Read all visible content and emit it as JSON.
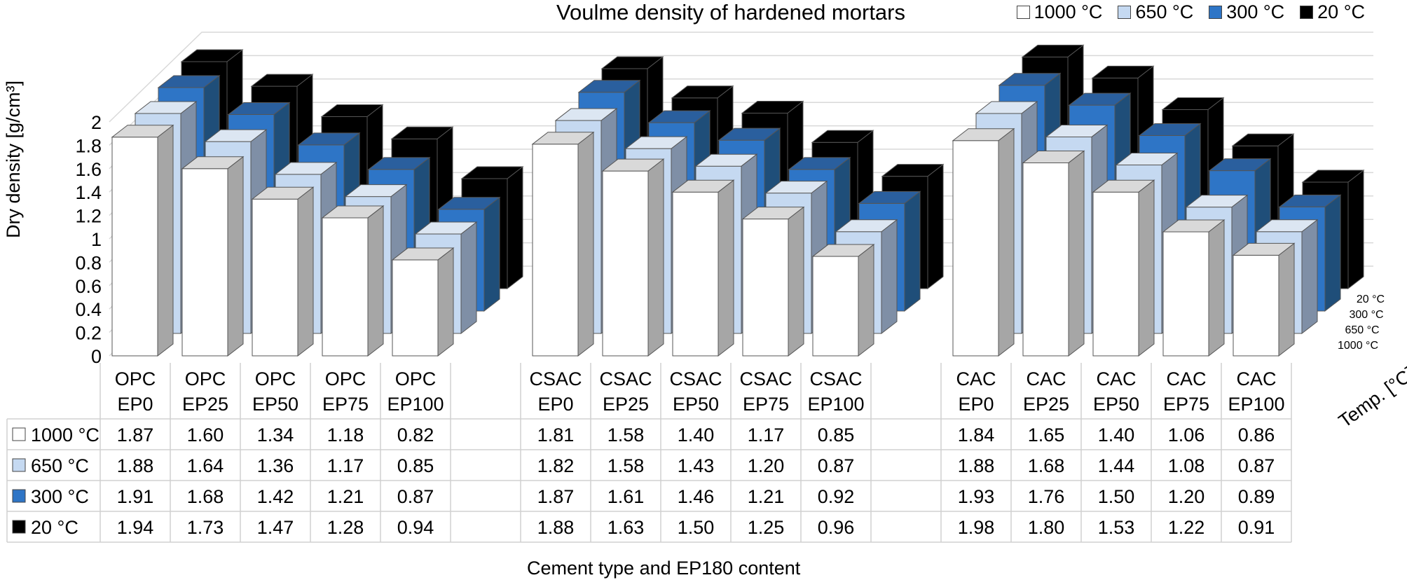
{
  "chart_data": {
    "type": "bar",
    "title": "Voulme density of hardened mortars",
    "xlabel": "Cement type and EP180 content",
    "ylabel": "Dry density [g/cm³]",
    "zlabel": "Temp. [°C]",
    "ylim": [
      0,
      2
    ],
    "yticks": [
      "0",
      "0.2",
      "0.4",
      "0.6",
      "0.8",
      "1",
      "1.2",
      "1.4",
      "1.6",
      "1.8",
      "2"
    ],
    "depth_ticks": [
      "1000 °C",
      "650 °C",
      "300 °C",
      "20 °C"
    ],
    "groups": [
      {
        "name": "OPC",
        "categories": [
          [
            "OPC",
            "EP0"
          ],
          [
            "OPC",
            "EP25"
          ],
          [
            "OPC",
            "EP50"
          ],
          [
            "OPC",
            "EP75"
          ],
          [
            "OPC",
            "EP100"
          ]
        ]
      },
      {
        "name": "CSAC",
        "categories": [
          [
            "CSAC",
            "EP0"
          ],
          [
            "CSAC",
            "EP25"
          ],
          [
            "CSAC",
            "EP50"
          ],
          [
            "CSAC",
            "EP75"
          ],
          [
            "CSAC",
            "EP100"
          ]
        ]
      },
      {
        "name": "CAC",
        "categories": [
          [
            "CAC",
            "EP0"
          ],
          [
            "CAC",
            "EP25"
          ],
          [
            "CAC",
            "EP50"
          ],
          [
            "CAC",
            "EP75"
          ],
          [
            "CAC",
            "EP100"
          ]
        ]
      }
    ],
    "series": [
      {
        "name": "1000 °C",
        "color": "#ffffff",
        "side": "#a6a6a6",
        "top": "#d9d9d9",
        "values": [
          [
            1.87,
            1.6,
            1.34,
            1.18,
            0.82
          ],
          [
            1.81,
            1.58,
            1.4,
            1.17,
            0.85
          ],
          [
            1.84,
            1.65,
            1.4,
            1.06,
            0.86
          ]
        ]
      },
      {
        "name": "650 °C",
        "color": "#c5d9f1",
        "side": "#7f8fa6",
        "top": "#dce6f2",
        "values": [
          [
            1.88,
            1.64,
            1.36,
            1.17,
            0.85
          ],
          [
            1.82,
            1.58,
            1.43,
            1.2,
            0.87
          ],
          [
            1.88,
            1.68,
            1.44,
            1.08,
            0.87
          ]
        ]
      },
      {
        "name": "300 °C",
        "color": "#2e75c6",
        "side": "#1f4e79",
        "top": "#2a5f9e",
        "values": [
          [
            1.91,
            1.68,
            1.42,
            1.21,
            0.87
          ],
          [
            1.87,
            1.61,
            1.46,
            1.21,
            0.92
          ],
          [
            1.93,
            1.76,
            1.5,
            1.2,
            0.89
          ]
        ]
      },
      {
        "name": "20 °C",
        "color": "#000000",
        "side": "#000000",
        "top": "#000000",
        "values": [
          [
            1.94,
            1.73,
            1.47,
            1.28,
            0.94
          ],
          [
            1.88,
            1.63,
            1.5,
            1.25,
            0.96
          ],
          [
            1.98,
            1.8,
            1.53,
            1.22,
            0.91
          ]
        ]
      }
    ],
    "legend": "top-right",
    "grid": true,
    "data_table": true
  }
}
